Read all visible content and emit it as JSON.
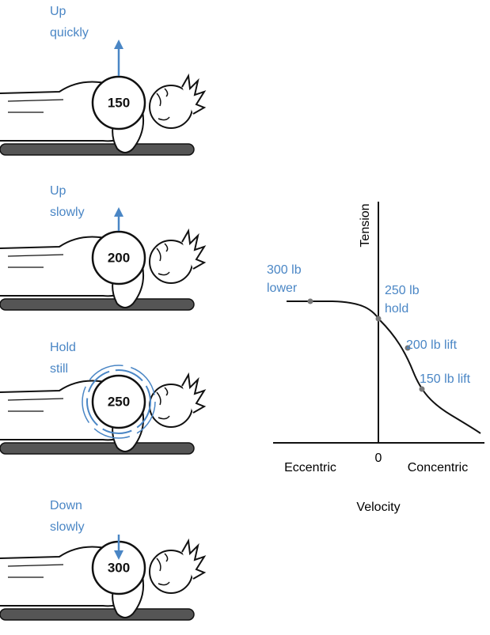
{
  "panels": [
    {
      "label": [
        "Up",
        "quickly"
      ],
      "weight": "150"
    },
    {
      "label": [
        "Up",
        "slowly"
      ],
      "weight": "200"
    },
    {
      "label": [
        "Hold",
        "still"
      ],
      "weight": "250"
    },
    {
      "label": [
        "Down",
        "slowly"
      ],
      "weight": "300"
    }
  ],
  "graph": {
    "y_label": "Tension",
    "x_label": "Velocity",
    "x_left": "Eccentric",
    "x_right": "Concentric",
    "origin": "0",
    "points": [
      {
        "label": [
          "300 lb",
          "lower"
        ]
      },
      {
        "label": [
          "250 lb",
          "hold"
        ]
      },
      {
        "label": [
          "200 lb lift"
        ]
      },
      {
        "label": [
          "150 lb lift"
        ]
      }
    ]
  }
}
